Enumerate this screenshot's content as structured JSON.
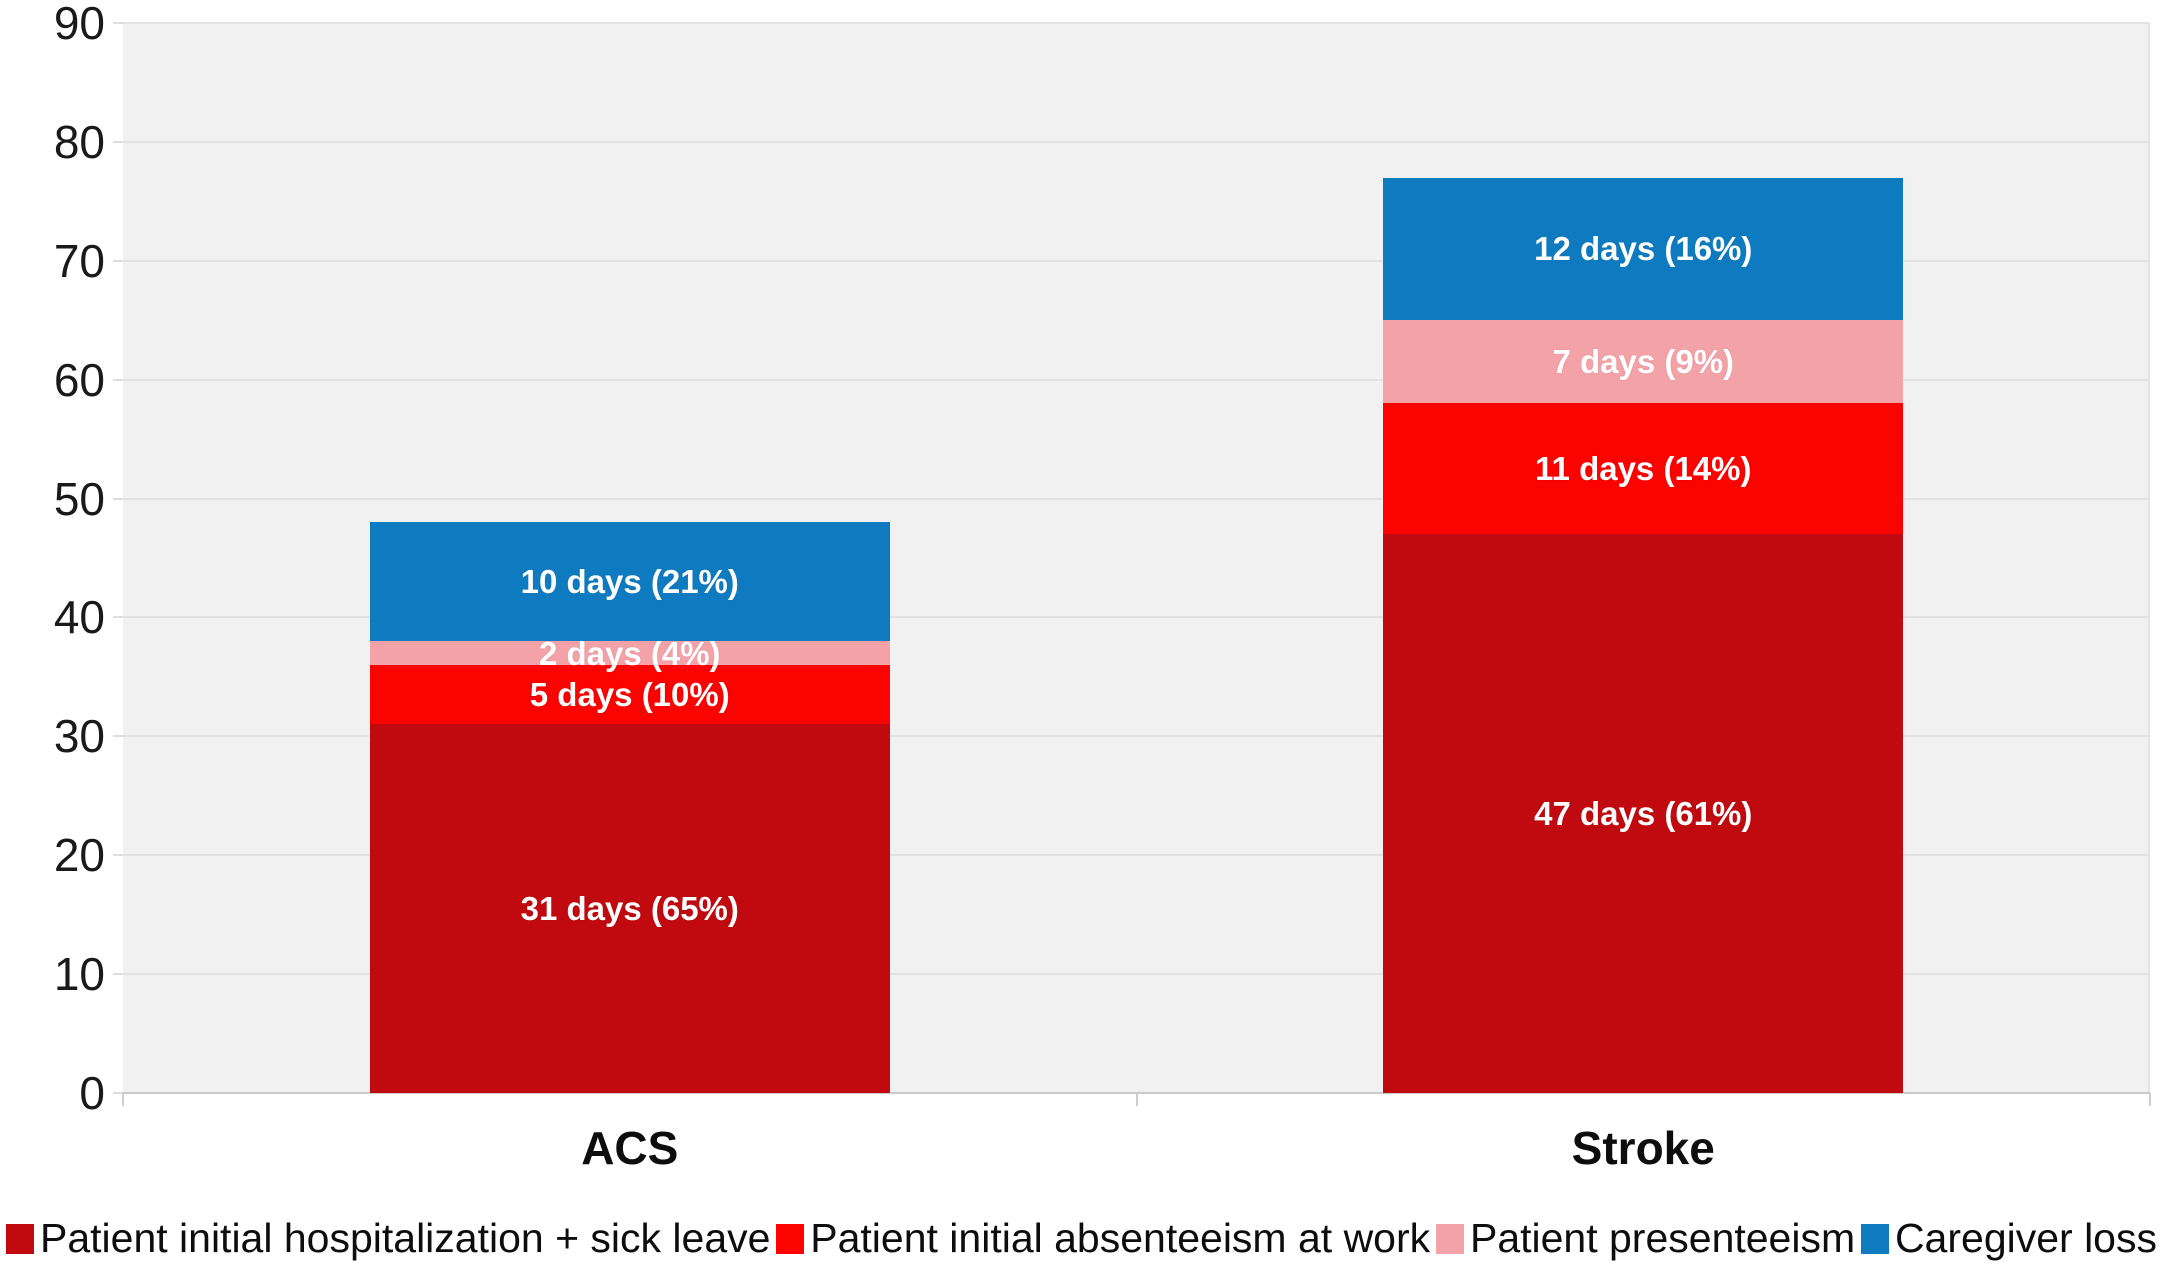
{
  "chart_data": {
    "type": "bar",
    "subtype": "stacked",
    "title": "",
    "xlabel": "",
    "ylabel": "",
    "categories": [
      "ACS",
      "Stroke"
    ],
    "category_totals_days": [
      48,
      77
    ],
    "series": [
      {
        "key": "hospitalization",
        "name": "Patient initial hospitalization + sick leave",
        "color": "#c00a0f",
        "values": [
          31,
          47
        ],
        "labels": [
          "31 days (65%)",
          "47 days (61%)"
        ]
      },
      {
        "key": "absenteeism",
        "name": "Patient initial absenteeism at work",
        "color": "#fb0300",
        "values": [
          5,
          11
        ],
        "labels": [
          "5 days (10%)",
          "11 days (14%)"
        ]
      },
      {
        "key": "presenteeism",
        "name": "Patient presenteeism",
        "color": "#f3a2a8",
        "values": [
          2,
          7
        ],
        "labels": [
          "2 days (4%)",
          "7 days (9%)"
        ]
      },
      {
        "key": "caregiver-loss",
        "name": "Caregiver loss",
        "color": "#0e7bc0",
        "values": [
          10,
          12
        ],
        "labels": [
          "10 days (21%)",
          "12 days (16%)"
        ]
      }
    ],
    "ylim": [
      0,
      90
    ],
    "yticks": [
      0,
      10,
      20,
      30,
      40,
      50,
      60,
      70,
      80,
      90
    ],
    "grid": true,
    "legend_position": "bottom",
    "plot_background": "#f1f1f2",
    "gridline_color": "#e2e2e4"
  }
}
